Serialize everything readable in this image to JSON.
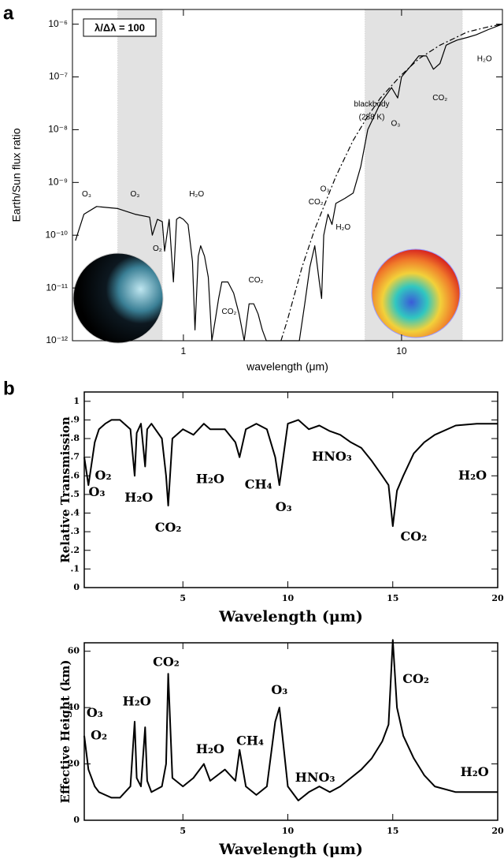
{
  "panel_labels": [
    "a",
    "b"
  ],
  "chart_data": [
    {
      "type": "line",
      "x_label": "wavelength (μm)",
      "y_label": "Earth/Sun flux ratio",
      "box_label": "λ/Δλ = 100",
      "x_log": true,
      "y_log": true,
      "grid": false,
      "xlim": [
        0.31,
        29
      ],
      "ylim": [
        1e-12,
        1.9e-06
      ],
      "xticks": [
        1,
        10
      ],
      "yticks": [
        {
          "value": 1e-12,
          "label": "10⁻¹²"
        },
        {
          "value": 1e-11,
          "label": "10⁻¹¹"
        },
        {
          "value": 1e-10,
          "label": "10⁻¹⁰"
        },
        {
          "value": 1e-09,
          "label": "10⁻⁹"
        },
        {
          "value": 1e-08,
          "label": "10⁻⁸"
        },
        {
          "value": 1e-07,
          "label": "10⁻⁷"
        },
        {
          "value": 1e-06,
          "label": "10⁻⁶"
        }
      ],
      "shaded_regions": [
        [
          0.5,
          0.8
        ],
        [
          6.8,
          19
        ]
      ],
      "series": [
        {
          "color": "#000000",
          "dash": false,
          "x": [
            0.32,
            0.35,
            0.4,
            0.5,
            0.6,
            0.7,
            0.72,
            0.76,
            0.8,
            0.82,
            0.86,
            0.9,
            0.93,
            0.96,
            1.0,
            1.05,
            1.1,
            1.13,
            1.17,
            1.2,
            1.25,
            1.3,
            1.35,
            1.4,
            1.45,
            1.5,
            1.6,
            1.7,
            1.8,
            1.9,
            2.0,
            2.1,
            2.2,
            2.3,
            2.4,
            2.6,
            2.8,
            3.0,
            3.2,
            3.4,
            3.6,
            3.8,
            4.0,
            4.2,
            4.3,
            4.4,
            4.6,
            4.8,
            5.0,
            5.5,
            6,
            6.5,
            7,
            8,
            9,
            9.6,
            10,
            11,
            12,
            13,
            14,
            15,
            16,
            17,
            18,
            20,
            22,
            25,
            29
          ],
          "values": [
            7.9e-11,
            2.5e-10,
            3.5e-10,
            3.2e-10,
            2.5e-10,
            2.2e-10,
            1e-10,
            2e-10,
            1.8e-10,
            5e-11,
            2e-10,
            1.3e-11,
            2e-10,
            2.2e-10,
            2e-10,
            1.6e-10,
            3.2e-11,
            1.6e-12,
            4e-11,
            6.3e-11,
            4e-11,
            1.6e-11,
            1e-12,
            2.5e-12,
            6.3e-12,
            1.3e-11,
            1.3e-11,
            8e-12,
            3.2e-12,
            1e-12,
            5e-12,
            5e-12,
            3.2e-12,
            1.6e-12,
            1e-12,
            1e-12,
            1e-12,
            1e-12,
            1e-12,
            1e-12,
            5e-12,
            2.5e-11,
            6.3e-11,
            1.3e-11,
            6.3e-12,
            1e-10,
            2.5e-10,
            1.6e-10,
            4e-10,
            5e-10,
            6.3e-10,
            2e-09,
            1e-08,
            3.2e-08,
            6.3e-08,
            4e-08,
            1e-07,
            1.6e-07,
            2.5e-07,
            2.5e-07,
            1.4e-07,
            1.8e-07,
            4e-07,
            4.5e-07,
            5e-07,
            5.6e-07,
            6.3e-07,
            7.9e-07,
            1e-06
          ]
        },
        {
          "color": "#000000",
          "dash": true,
          "x": [
            2.8,
            3,
            3.5,
            4,
            5,
            6,
            7,
            8,
            10,
            12,
            15,
            20,
            25,
            29
          ],
          "values": [
            1e-12,
            2.5e-12,
            2.5e-11,
            1.3e-10,
            1.3e-09,
            6.3e-09,
            1.8e-08,
            4e-08,
            1.1e-07,
            2.2e-07,
            4e-07,
            7.1e-07,
            8.9e-07,
            1e-06
          ]
        }
      ],
      "annotations": [
        "O₃",
        "O₃",
        "H₂O",
        "O₂",
        "CO₂",
        "CO₂",
        "CO₂",
        "O₃",
        "H₂O",
        "blackbody",
        "(288 K)",
        "O₃",
        "CO₂",
        "H₂O"
      ]
    },
    {
      "type": "line",
      "x_label": "Wavelength (μm)",
      "y_label": "Relative Transmission",
      "x_log": false,
      "y_log": false,
      "grid": false,
      "xlim": [
        0.3,
        20
      ],
      "ylim": [
        0,
        1.05
      ],
      "xticks": [
        5,
        10,
        15,
        20
      ],
      "yticks": [
        0,
        {
          "value": 0.1,
          "label": ".1"
        },
        {
          "value": 0.2,
          "label": ".2"
        },
        {
          "value": 0.3,
          "label": ".3"
        },
        {
          "value": 0.4,
          "label": ".4"
        },
        {
          "value": 0.5,
          "label": ".5"
        },
        {
          "value": 0.6,
          "label": ".6"
        },
        {
          "value": 0.7,
          "label": ".7"
        },
        {
          "value": 0.8,
          "label": ".8"
        },
        {
          "value": 0.9,
          "label": ".9"
        },
        1
      ],
      "x": [
        0.3,
        0.5,
        0.8,
        1,
        1.3,
        1.6,
        2,
        2.5,
        2.7,
        2.8,
        3,
        3.2,
        3.3,
        3.5,
        4,
        4.2,
        4.3,
        4.5,
        5,
        5.5,
        6,
        6.3,
        7,
        7.5,
        7.7,
        8,
        8.5,
        9,
        9.4,
        9.6,
        10,
        10.5,
        11,
        11.5,
        12,
        12.5,
        13,
        13.5,
        14,
        14.5,
        14.8,
        15,
        15.2,
        15.5,
        16,
        16.5,
        17,
        18,
        19,
        20
      ],
      "series": [
        {
          "color": "#000000",
          "dash": false,
          "values": [
            0.7,
            0.55,
            0.78,
            0.85,
            0.88,
            0.9,
            0.9,
            0.85,
            0.6,
            0.83,
            0.88,
            0.65,
            0.85,
            0.88,
            0.8,
            0.6,
            0.44,
            0.8,
            0.85,
            0.82,
            0.88,
            0.85,
            0.85,
            0.78,
            0.7,
            0.85,
            0.88,
            0.85,
            0.7,
            0.55,
            0.88,
            0.9,
            0.85,
            0.87,
            0.84,
            0.82,
            0.78,
            0.75,
            0.68,
            0.6,
            0.55,
            0.33,
            0.52,
            0.6,
            0.72,
            0.78,
            0.82,
            0.87,
            0.88,
            0.88
          ]
        }
      ],
      "annotations": [
        "O₂",
        "O₃",
        "H₂O",
        "CO₂",
        "H₂O",
        "CH₄",
        "O₃",
        "HNO₃",
        "CO₂",
        "H₂O"
      ]
    },
    {
      "type": "line",
      "x_label": "Wavelength (μm)",
      "y_label": "Effective Height (km)",
      "x_log": false,
      "y_log": false,
      "grid": false,
      "xlim": [
        0.3,
        20
      ],
      "ylim": [
        0,
        63
      ],
      "xticks": [
        5,
        10,
        15,
        20
      ],
      "yticks": [
        0,
        20,
        40,
        60
      ],
      "x": [
        0.3,
        0.5,
        0.8,
        1,
        1.3,
        1.6,
        2,
        2.5,
        2.7,
        2.8,
        3,
        3.2,
        3.3,
        3.5,
        4,
        4.2,
        4.3,
        4.5,
        5,
        5.5,
        6,
        6.3,
        7,
        7.5,
        7.7,
        8,
        8.5,
        9,
        9.4,
        9.6,
        10,
        10.5,
        11,
        11.5,
        12,
        12.5,
        13,
        13.5,
        14,
        14.5,
        14.8,
        15,
        15.2,
        15.5,
        16,
        16.5,
        17,
        18,
        19,
        20
      ],
      "series": [
        {
          "color": "#000000",
          "dash": false,
          "values": [
            30,
            18,
            12,
            10,
            9,
            8,
            8,
            12,
            35,
            15,
            12,
            33,
            14,
            10,
            12,
            20,
            52,
            15,
            12,
            15,
            20,
            14,
            18,
            14,
            25,
            12,
            9,
            12,
            35,
            40,
            12,
            7,
            10,
            12,
            10,
            12,
            15,
            18,
            22,
            28,
            34,
            64,
            40,
            30,
            22,
            16,
            12,
            10,
            10,
            10
          ]
        }
      ],
      "annotations": [
        "O₃",
        "O₂",
        "H₂O",
        "CO₂",
        "H₂O",
        "CH₄",
        "O₃",
        "HNO₃",
        "CO₂",
        "H₂O"
      ]
    }
  ]
}
